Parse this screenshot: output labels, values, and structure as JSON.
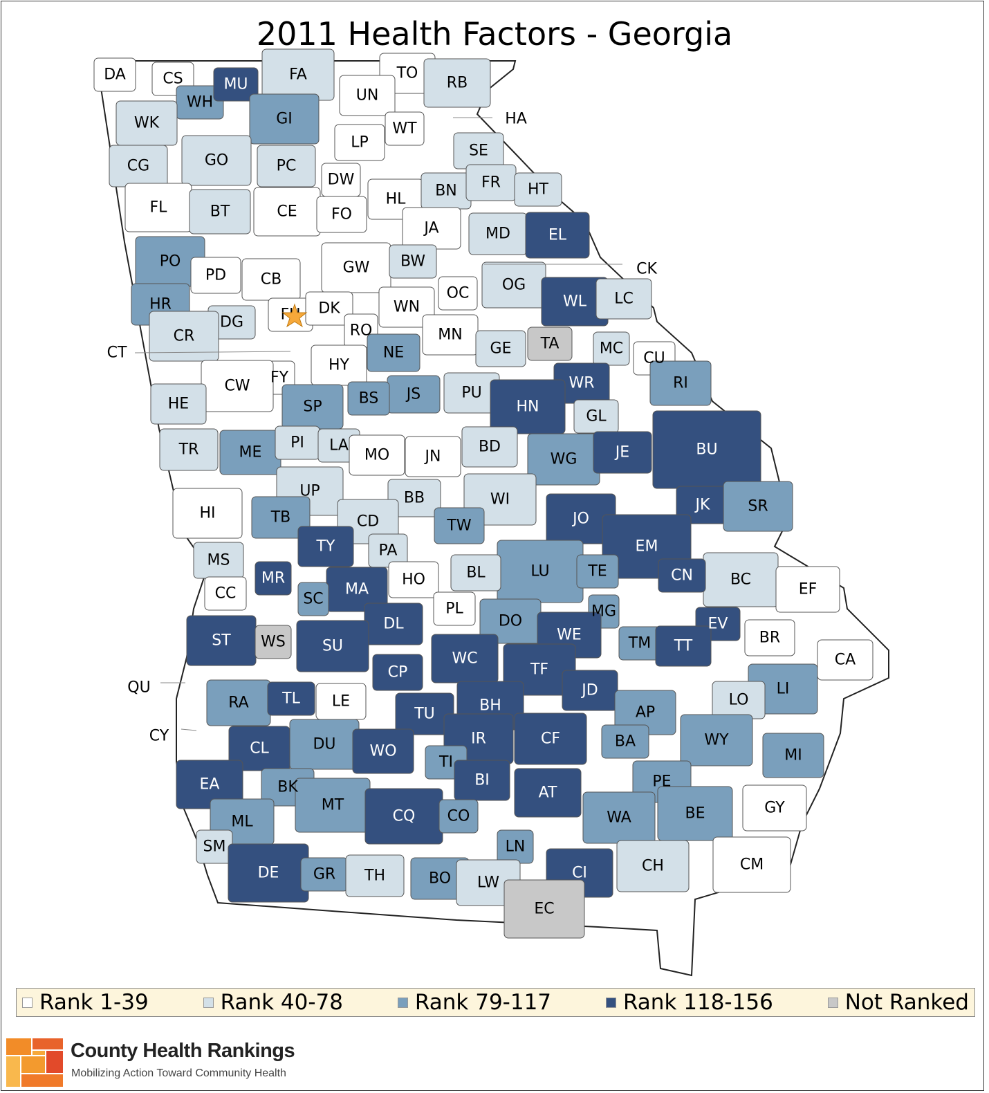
{
  "title": "2011 Health Factors - Georgia",
  "colors": {
    "rank_1_39": "#ffffff",
    "rank_40_78": "#d3e0e8",
    "rank_79_117": "#7a9fbc",
    "rank_118_156": "#34507f",
    "not_ranked": "#c8c8c8",
    "star": "#f6a83a",
    "legend_bg": "#fdf5dc"
  },
  "legend": [
    {
      "label": "Rank 1-39",
      "color": "#ffffff"
    },
    {
      "label": "Rank 40-78",
      "color": "#d3e0e8"
    },
    {
      "label": "Rank 79-117",
      "color": "#7a9fbc"
    },
    {
      "label": "Rank 118-156",
      "color": "#34507f"
    },
    {
      "label": "Not Ranked",
      "color": "#c8c8c8"
    }
  ],
  "counties": [
    {
      "code": "DA",
      "rank": 1
    },
    {
      "code": "CS",
      "rank": 1
    },
    {
      "code": "WH",
      "rank": 3
    },
    {
      "code": "MU",
      "rank": 4
    },
    {
      "code": "FA",
      "rank": 2
    },
    {
      "code": "TO",
      "rank": 1
    },
    {
      "code": "RB",
      "rank": 2
    },
    {
      "code": "WK",
      "rank": 2
    },
    {
      "code": "GI",
      "rank": 3
    },
    {
      "code": "UN",
      "rank": 1
    },
    {
      "code": "HA",
      "rank": 1
    },
    {
      "code": "WT",
      "rank": 1
    },
    {
      "code": "LP",
      "rank": 1
    },
    {
      "code": "CG",
      "rank": 2
    },
    {
      "code": "GO",
      "rank": 2
    },
    {
      "code": "PC",
      "rank": 2
    },
    {
      "code": "DW",
      "rank": 1
    },
    {
      "code": "SE",
      "rank": 2
    },
    {
      "code": "FL",
      "rank": 1
    },
    {
      "code": "BT",
      "rank": 2
    },
    {
      "code": "CE",
      "rank": 1
    },
    {
      "code": "FO",
      "rank": 1
    },
    {
      "code": "HL",
      "rank": 1
    },
    {
      "code": "BN",
      "rank": 2
    },
    {
      "code": "FR",
      "rank": 2
    },
    {
      "code": "HT",
      "rank": 2
    },
    {
      "code": "JA",
      "rank": 1
    },
    {
      "code": "MD",
      "rank": 2
    },
    {
      "code": "EL",
      "rank": 4
    },
    {
      "code": "PO",
      "rank": 3
    },
    {
      "code": "PD",
      "rank": 1
    },
    {
      "code": "CB",
      "rank": 1
    },
    {
      "code": "GW",
      "rank": 1
    },
    {
      "code": "BW",
      "rank": 2
    },
    {
      "code": "CK",
      "rank": 1
    },
    {
      "code": "OG",
      "rank": 2
    },
    {
      "code": "HR",
      "rank": 3
    },
    {
      "code": "DG",
      "rank": 2
    },
    {
      "code": "FU",
      "rank": 1
    },
    {
      "code": "DK",
      "rank": 1
    },
    {
      "code": "WN",
      "rank": 1
    },
    {
      "code": "OC",
      "rank": 1
    },
    {
      "code": "WL",
      "rank": 4
    },
    {
      "code": "LC",
      "rank": 2
    },
    {
      "code": "CR",
      "rank": 2
    },
    {
      "code": "RO",
      "rank": 1
    },
    {
      "code": "MN",
      "rank": 1
    },
    {
      "code": "GE",
      "rank": 2
    },
    {
      "code": "TA",
      "rank": 0
    },
    {
      "code": "CT",
      "rank": 2
    },
    {
      "code": "NE",
      "rank": 3
    },
    {
      "code": "MC",
      "rank": 2
    },
    {
      "code": "CU",
      "rank": 1
    },
    {
      "code": "HY",
      "rank": 1
    },
    {
      "code": "FY",
      "rank": 1
    },
    {
      "code": "CW",
      "rank": 1
    },
    {
      "code": "JS",
      "rank": 3
    },
    {
      "code": "PU",
      "rank": 2
    },
    {
      "code": "WR",
      "rank": 4
    },
    {
      "code": "RI",
      "rank": 3
    },
    {
      "code": "HE",
      "rank": 2
    },
    {
      "code": "SP",
      "rank": 3
    },
    {
      "code": "BS",
      "rank": 3
    },
    {
      "code": "HN",
      "rank": 4
    },
    {
      "code": "GL",
      "rank": 2
    },
    {
      "code": "TR",
      "rank": 2
    },
    {
      "code": "ME",
      "rank": 3
    },
    {
      "code": "PI",
      "rank": 2
    },
    {
      "code": "LA",
      "rank": 2
    },
    {
      "code": "MO",
      "rank": 1
    },
    {
      "code": "JN",
      "rank": 1
    },
    {
      "code": "BD",
      "rank": 2
    },
    {
      "code": "WG",
      "rank": 3
    },
    {
      "code": "JE",
      "rank": 4
    },
    {
      "code": "BU",
      "rank": 4
    },
    {
      "code": "UP",
      "rank": 2
    },
    {
      "code": "WI",
      "rank": 2
    },
    {
      "code": "BB",
      "rank": 2
    },
    {
      "code": "JK",
      "rank": 4
    },
    {
      "code": "SR",
      "rank": 3
    },
    {
      "code": "HI",
      "rank": 1
    },
    {
      "code": "TB",
      "rank": 3
    },
    {
      "code": "CD",
      "rank": 2
    },
    {
      "code": "JO",
      "rank": 4
    },
    {
      "code": "TW",
      "rank": 3
    },
    {
      "code": "TY",
      "rank": 4
    },
    {
      "code": "EM",
      "rank": 4
    },
    {
      "code": "PA",
      "rank": 2
    },
    {
      "code": "MS",
      "rank": 2
    },
    {
      "code": "LU",
      "rank": 3
    },
    {
      "code": "BC",
      "rank": 2
    },
    {
      "code": "EF",
      "rank": 1
    },
    {
      "code": "MR",
      "rank": 4
    },
    {
      "code": "HO",
      "rank": 1
    },
    {
      "code": "BL",
      "rank": 2
    },
    {
      "code": "TE",
      "rank": 3
    },
    {
      "code": "CN",
      "rank": 4
    },
    {
      "code": "MA",
      "rank": 4
    },
    {
      "code": "CC",
      "rank": 1
    },
    {
      "code": "SC",
      "rank": 3
    },
    {
      "code": "PL",
      "rank": 1
    },
    {
      "code": "MG",
      "rank": 3
    },
    {
      "code": "DL",
      "rank": 4
    },
    {
      "code": "DO",
      "rank": 3
    },
    {
      "code": "EV",
      "rank": 4
    },
    {
      "code": "ST",
      "rank": 4
    },
    {
      "code": "WS",
      "rank": 0
    },
    {
      "code": "WE",
      "rank": 4
    },
    {
      "code": "TM",
      "rank": 3
    },
    {
      "code": "TT",
      "rank": 4
    },
    {
      "code": "BR",
      "rank": 1
    },
    {
      "code": "SU",
      "rank": 4
    },
    {
      "code": "WC",
      "rank": 4
    },
    {
      "code": "CA",
      "rank": 1
    },
    {
      "code": "CP",
      "rank": 4
    },
    {
      "code": "TF",
      "rank": 4
    },
    {
      "code": "QU",
      "rank": 4
    },
    {
      "code": "JD",
      "rank": 4
    },
    {
      "code": "LI",
      "rank": 3
    },
    {
      "code": "RA",
      "rank": 3
    },
    {
      "code": "TL",
      "rank": 4
    },
    {
      "code": "LE",
      "rank": 1
    },
    {
      "code": "LO",
      "rank": 2
    },
    {
      "code": "AP",
      "rank": 3
    },
    {
      "code": "BH",
      "rank": 4
    },
    {
      "code": "TU",
      "rank": 4
    },
    {
      "code": "CY",
      "rank": 4
    },
    {
      "code": "IR",
      "rank": 4
    },
    {
      "code": "CF",
      "rank": 4
    },
    {
      "code": "WY",
      "rank": 3
    },
    {
      "code": "BA",
      "rank": 3
    },
    {
      "code": "DU",
      "rank": 3
    },
    {
      "code": "CL",
      "rank": 4
    },
    {
      "code": "WO",
      "rank": 4
    },
    {
      "code": "MI",
      "rank": 3
    },
    {
      "code": "TI",
      "rank": 3
    },
    {
      "code": "EA",
      "rank": 4
    },
    {
      "code": "BI",
      "rank": 4
    },
    {
      "code": "PE",
      "rank": 3
    },
    {
      "code": "BK",
      "rank": 3
    },
    {
      "code": "AT",
      "rank": 4
    },
    {
      "code": "MT",
      "rank": 3
    },
    {
      "code": "GY",
      "rank": 1
    },
    {
      "code": "WA",
      "rank": 3
    },
    {
      "code": "CQ",
      "rank": 4
    },
    {
      "code": "CO",
      "rank": 3
    },
    {
      "code": "BE",
      "rank": 3
    },
    {
      "code": "ML",
      "rank": 3
    },
    {
      "code": "SM",
      "rank": 2
    },
    {
      "code": "LN",
      "rank": 3
    },
    {
      "code": "CM",
      "rank": 1
    },
    {
      "code": "CH",
      "rank": 2
    },
    {
      "code": "CI",
      "rank": 4
    },
    {
      "code": "DE",
      "rank": 4
    },
    {
      "code": "GR",
      "rank": 3
    },
    {
      "code": "TH",
      "rank": 2
    },
    {
      "code": "BO",
      "rank": 3
    },
    {
      "code": "LW",
      "rank": 2
    },
    {
      "code": "EC",
      "rank": 0
    }
  ],
  "brand": {
    "name": "County Health Rankings",
    "tagline": "Mobilizing Action Toward Community Health"
  }
}
